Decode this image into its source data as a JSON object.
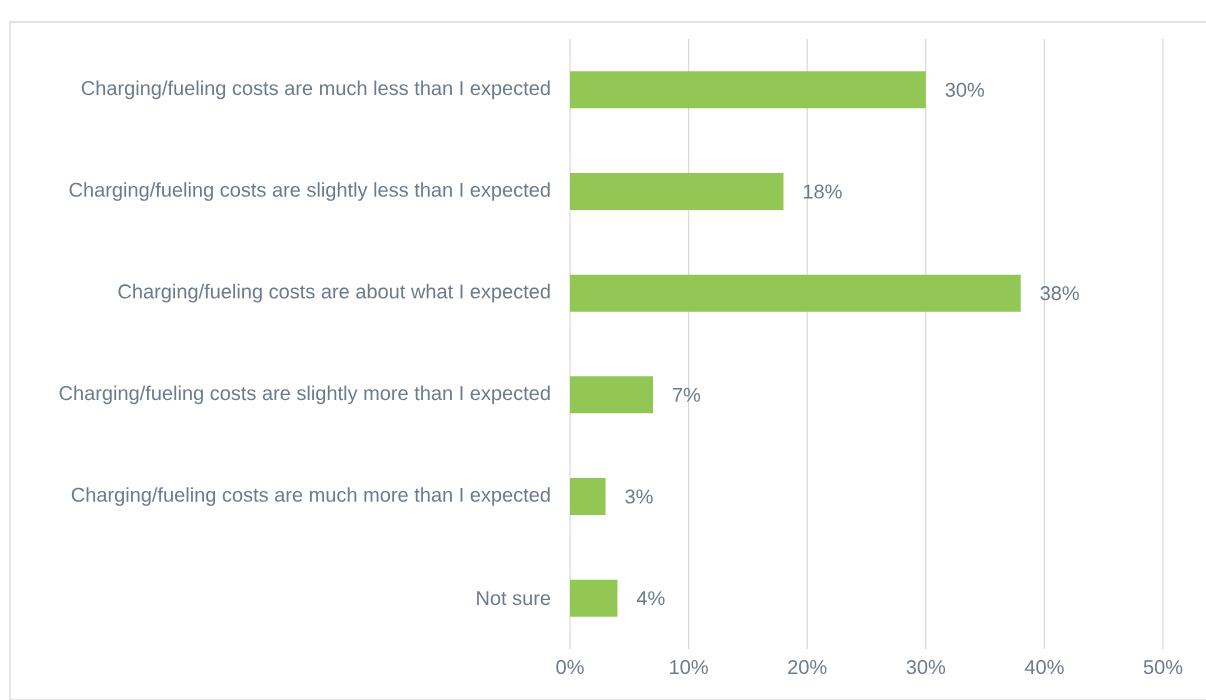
{
  "chart_data": {
    "type": "bar",
    "orientation": "horizontal",
    "categories": [
      "Charging/fueling costs are much less than I expected",
      "Charging/fueling costs are slightly less than I expected",
      "Charging/fueling costs are about what I expected",
      "Charging/fueling costs are slightly more than I expected",
      "Charging/fueling costs are much more than I expected",
      "Not sure"
    ],
    "values": [
      30,
      18,
      38,
      7,
      3,
      4
    ],
    "value_labels": [
      "30%",
      "18%",
      "38%",
      "7%",
      "3%",
      "4%"
    ],
    "color": "#92c755",
    "xlim": [
      0,
      50
    ],
    "xticks": [
      {
        "value": 0,
        "label": "0%"
      },
      {
        "value": 10,
        "label": "10%"
      },
      {
        "value": 20,
        "label": "20%"
      },
      {
        "value": 30,
        "label": "30%"
      },
      {
        "value": 40,
        "label": "40%"
      },
      {
        "value": 50,
        "label": "50%"
      }
    ],
    "grid": "x"
  }
}
